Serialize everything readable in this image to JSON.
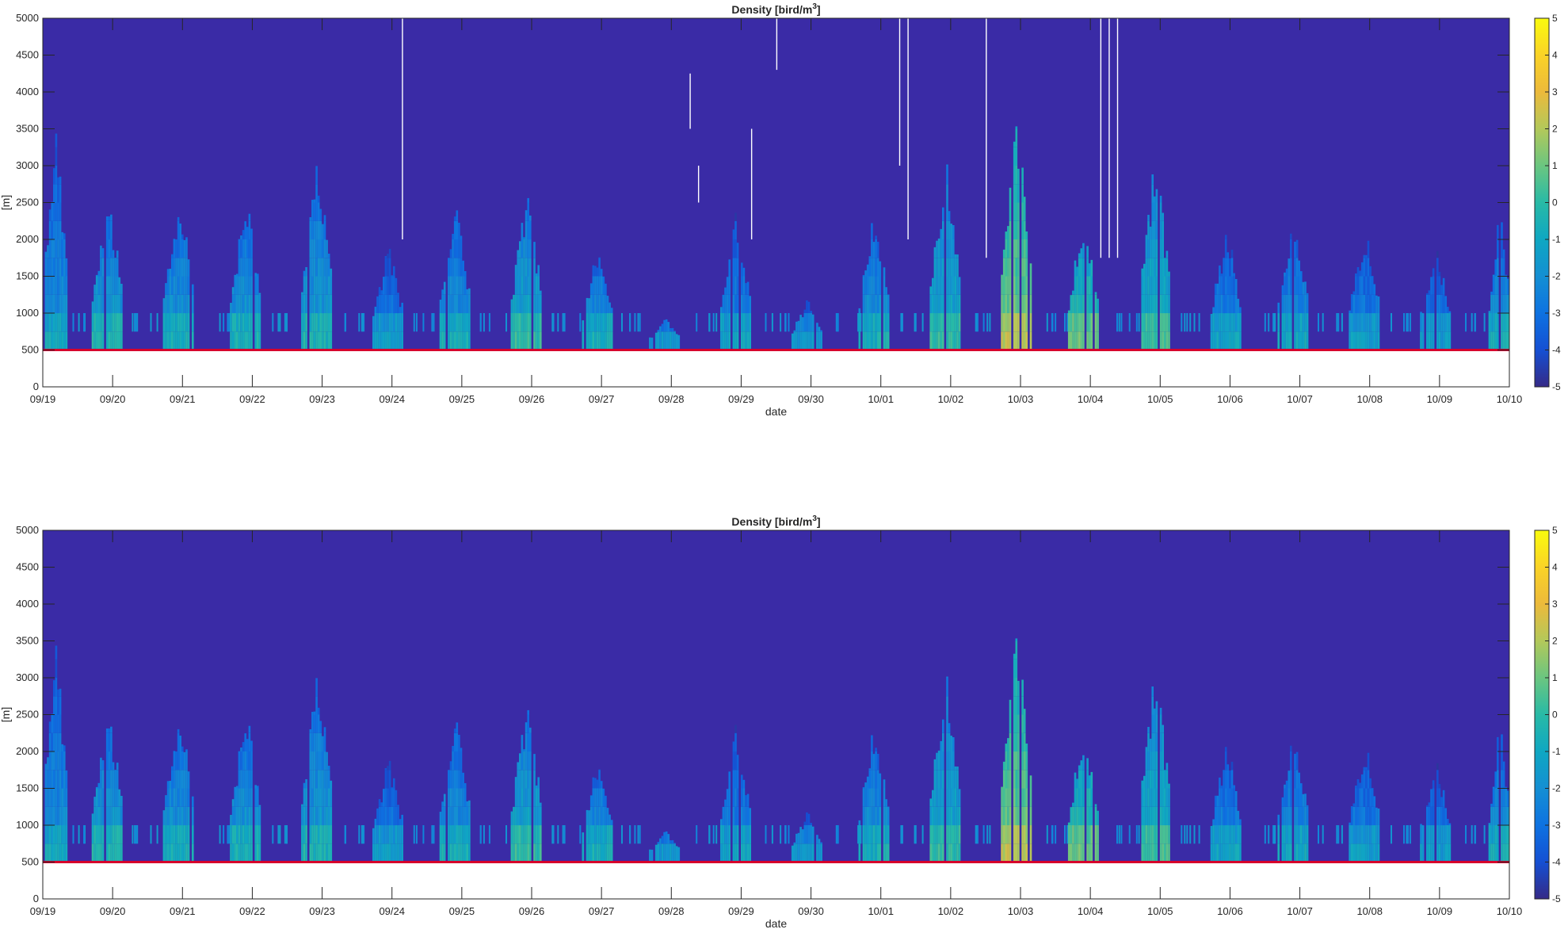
{
  "chart_data": [
    {
      "type": "heatmap",
      "title": "Density [bird/m",
      "title_sup": "3",
      "title_tail": "]",
      "xlabel": "date",
      "ylabel": "[m]",
      "x_ticks": [
        "09/19",
        "09/20",
        "09/21",
        "09/22",
        "09/23",
        "09/24",
        "09/25",
        "09/26",
        "09/27",
        "09/28",
        "09/29",
        "09/30",
        "10/01",
        "10/02",
        "10/03",
        "10/04",
        "10/05",
        "10/06",
        "10/07",
        "10/08",
        "10/09",
        "10/10"
      ],
      "y_ticks": [
        0,
        500,
        1000,
        1500,
        2000,
        2500,
        3000,
        3500,
        4000,
        4500,
        5000
      ],
      "ylim": [
        0,
        5000
      ],
      "colorbar": {
        "colormap": "parula",
        "limits": [
          -5,
          5
        ],
        "ticks": [
          -5,
          -4,
          -3,
          -2,
          -1,
          0,
          1,
          2,
          3,
          4,
          5
        ]
      },
      "reference_line": {
        "y": 500,
        "color": "#d7002c"
      },
      "grid": false,
      "missing_data_lines": [
        {
          "date": "09/24",
          "y0": 2000,
          "y1": 5000
        },
        {
          "date": "09/28",
          "y0": 4250,
          "y1": 3500
        },
        {
          "date": "09/28",
          "y0": 3000,
          "y1": 2500
        },
        {
          "date": "09/29",
          "y0": 5000,
          "y1": 4300
        },
        {
          "date": "09/29",
          "y0": 3500,
          "y1": 2000
        },
        {
          "date": "10/01",
          "y0": 5000,
          "y1": 3000
        },
        {
          "date": "10/01",
          "y0": 5000,
          "y1": 2000
        },
        {
          "date": "10/02",
          "y0": 5000,
          "y1": 1750
        },
        {
          "date": "10/04",
          "y0": 5000,
          "y1": 1750
        },
        {
          "date": "10/04",
          "y0": 5000,
          "y1": 1750
        },
        {
          "date": "10/04",
          "y0": 5000,
          "y1": 1750
        }
      ],
      "daily_peaks_m": [
        {
          "date": "09/19",
          "top": 3750,
          "intensity": -1.8
        },
        {
          "date": "09/20",
          "top": 2750,
          "intensity": -1.2
        },
        {
          "date": "09/21",
          "top": 2750,
          "intensity": -1.5
        },
        {
          "date": "09/22",
          "top": 2750,
          "intensity": -1.4
        },
        {
          "date": "09/23",
          "top": 3250,
          "intensity": -1.3
        },
        {
          "date": "09/24",
          "top": 2000,
          "intensity": -2.2
        },
        {
          "date": "09/25",
          "top": 2500,
          "intensity": -1.5
        },
        {
          "date": "09/26",
          "top": 2750,
          "intensity": -0.8
        },
        {
          "date": "09/27",
          "top": 2000,
          "intensity": -1.5
        },
        {
          "date": "09/28",
          "top": 1000,
          "intensity": -2.5
        },
        {
          "date": "09/29",
          "top": 2500,
          "intensity": -2.0
        },
        {
          "date": "09/30",
          "top": 1250,
          "intensity": -2.5
        },
        {
          "date": "10/01",
          "top": 2500,
          "intensity": -1.5
        },
        {
          "date": "10/02",
          "top": 3250,
          "intensity": -0.8
        },
        {
          "date": "10/03",
          "top": 3750,
          "intensity": 1.2
        },
        {
          "date": "10/04",
          "top": 2500,
          "intensity": 0.2
        },
        {
          "date": "10/05",
          "top": 3250,
          "intensity": -0.5
        },
        {
          "date": "10/06",
          "top": 2250,
          "intensity": -2.0
        },
        {
          "date": "10/07",
          "top": 2500,
          "intensity": -1.8
        },
        {
          "date": "10/08",
          "top": 2250,
          "intensity": -2.2
        },
        {
          "date": "10/09",
          "top": 2000,
          "intensity": -2.3
        },
        {
          "date": "10/10",
          "top": 2500,
          "intensity": -1.6
        }
      ]
    },
    {
      "type": "heatmap",
      "title": "Density [bird/m",
      "title_sup": "3",
      "title_tail": "]",
      "xlabel": "date",
      "ylabel": "[m]",
      "x_ticks": [
        "09/19",
        "09/20",
        "09/21",
        "09/22",
        "09/23",
        "09/24",
        "09/25",
        "09/26",
        "09/27",
        "09/28",
        "09/29",
        "09/30",
        "10/01",
        "10/02",
        "10/03",
        "10/04",
        "10/05",
        "10/06",
        "10/07",
        "10/08",
        "10/09",
        "10/10"
      ],
      "y_ticks": [
        0,
        500,
        1000,
        1500,
        2000,
        2500,
        3000,
        3500,
        4000,
        4500,
        5000
      ],
      "ylim": [
        0,
        5000
      ],
      "colorbar": {
        "colormap": "parula",
        "limits": [
          -5,
          5
        ],
        "ticks": [
          -5,
          -4,
          -3,
          -2,
          -1,
          0,
          1,
          2,
          3,
          4,
          5
        ]
      },
      "reference_line": {
        "y": 500,
        "color": "#d7002c"
      },
      "grid": false,
      "missing_data_lines": [],
      "daily_peaks_m": [
        {
          "date": "09/19",
          "top": 3750,
          "intensity": -1.8
        },
        {
          "date": "09/20",
          "top": 2750,
          "intensity": -1.2
        },
        {
          "date": "09/21",
          "top": 2750,
          "intensity": -1.5
        },
        {
          "date": "09/22",
          "top": 2750,
          "intensity": -1.4
        },
        {
          "date": "09/23",
          "top": 3250,
          "intensity": -1.3
        },
        {
          "date": "09/24",
          "top": 2000,
          "intensity": -2.2
        },
        {
          "date": "09/25",
          "top": 2500,
          "intensity": -1.5
        },
        {
          "date": "09/26",
          "top": 2750,
          "intensity": -0.8
        },
        {
          "date": "09/27",
          "top": 2000,
          "intensity": -1.5
        },
        {
          "date": "09/28",
          "top": 1000,
          "intensity": -2.5
        },
        {
          "date": "09/29",
          "top": 2500,
          "intensity": -2.0
        },
        {
          "date": "09/30",
          "top": 1250,
          "intensity": -2.5
        },
        {
          "date": "10/01",
          "top": 2500,
          "intensity": -1.5
        },
        {
          "date": "10/02",
          "top": 3250,
          "intensity": -0.8
        },
        {
          "date": "10/03",
          "top": 3750,
          "intensity": 1.2
        },
        {
          "date": "10/04",
          "top": 2500,
          "intensity": 0.2
        },
        {
          "date": "10/05",
          "top": 3250,
          "intensity": -0.5
        },
        {
          "date": "10/06",
          "top": 2250,
          "intensity": -2.0
        },
        {
          "date": "10/07",
          "top": 2500,
          "intensity": -1.8
        },
        {
          "date": "10/08",
          "top": 2250,
          "intensity": -2.2
        },
        {
          "date": "10/09",
          "top": 2000,
          "intensity": -2.3
        },
        {
          "date": "10/10",
          "top": 2500,
          "intensity": -1.6
        }
      ]
    }
  ]
}
